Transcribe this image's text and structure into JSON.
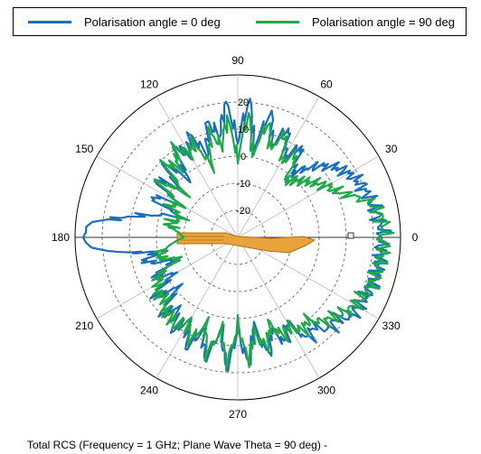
{
  "legend": {
    "items": [
      {
        "label": "Polarisation angle = 0 deg",
        "color": "#1a6fbd"
      },
      {
        "label": "Polarisation angle = 90 deg",
        "color": "#1fa84a"
      }
    ]
  },
  "caption": "Total RCS (Frequency = 1 GHz; Plane Wave Theta = 90 deg) -",
  "chart_data": {
    "type": "polar-line",
    "title": "",
    "angle_unit": "deg",
    "angle_ticks": [
      "0",
      "30",
      "60",
      "90",
      "120",
      "150",
      "180",
      "210",
      "240",
      "270",
      "300",
      "330"
    ],
    "radial_ticks": [
      "-20",
      "-10",
      "0",
      "10",
      "20"
    ],
    "rlim": [
      -30,
      30
    ],
    "grid": true,
    "legend_position": "top",
    "series": [
      {
        "name": "Polarisation angle = 0 deg",
        "color": "#1a6fbd",
        "angles": [
          0,
          5,
          10,
          15,
          20,
          25,
          30,
          35,
          40,
          45,
          50,
          55,
          60,
          65,
          70,
          75,
          80,
          85,
          90,
          95,
          100,
          105,
          110,
          115,
          120,
          125,
          130,
          135,
          140,
          145,
          150,
          155,
          160,
          165,
          170,
          172,
          174,
          176,
          178,
          180,
          182,
          184,
          186,
          188,
          190,
          195,
          200,
          205,
          210,
          215,
          220,
          225,
          230,
          235,
          240,
          245,
          250,
          255,
          260,
          265,
          270,
          275,
          280,
          285,
          290,
          295,
          300,
          305,
          310,
          315,
          320,
          325,
          330,
          335,
          340,
          345,
          350,
          355
        ],
        "values": [
          23,
          23,
          22,
          21,
          20,
          19,
          17,
          15,
          11,
          6,
          1,
          11,
          4,
          14,
          6,
          18,
          3,
          21,
          5,
          20,
          8,
          14,
          2,
          12,
          5,
          11,
          -3,
          9,
          -2,
          8,
          -5,
          6,
          -8,
          2,
          12,
          18,
          24,
          26,
          26,
          27,
          26,
          24,
          18,
          10,
          0,
          6,
          -6,
          4,
          -3,
          8,
          -2,
          10,
          4,
          12,
          5,
          15,
          6,
          17,
          3,
          19,
          4,
          17,
          2,
          15,
          6,
          13,
          6,
          16,
          13,
          18,
          17,
          21,
          21,
          22,
          22,
          23,
          23,
          23
        ]
      },
      {
        "name": "Polarisation angle = 90 deg",
        "color": "#1fa84a",
        "angles": [
          0,
          5,
          10,
          15,
          20,
          25,
          30,
          35,
          40,
          45,
          50,
          55,
          60,
          65,
          70,
          75,
          80,
          85,
          90,
          95,
          100,
          105,
          110,
          115,
          120,
          125,
          130,
          135,
          140,
          145,
          150,
          155,
          160,
          165,
          170,
          175,
          180,
          185,
          190,
          195,
          200,
          205,
          210,
          215,
          220,
          225,
          230,
          235,
          240,
          245,
          250,
          255,
          260,
          265,
          270,
          275,
          280,
          285,
          290,
          295,
          300,
          305,
          310,
          315,
          320,
          325,
          330,
          335,
          340,
          345,
          350,
          355
        ],
        "values": [
          24,
          24,
          23,
          20,
          15,
          10,
          8,
          5,
          2,
          0,
          -3,
          8,
          2,
          12,
          5,
          14,
          0,
          16,
          -2,
          14,
          4,
          10,
          -2,
          8,
          6,
          10,
          4,
          8,
          -5,
          6,
          -6,
          -2,
          -8,
          -6,
          -4,
          -8,
          -10,
          -6,
          -2,
          0,
          -8,
          2,
          4,
          6,
          5,
          8,
          8,
          10,
          6,
          12,
          4,
          14,
          5,
          16,
          2,
          15,
          6,
          12,
          4,
          10,
          8,
          12,
          10,
          14,
          16,
          18,
          20,
          21,
          22,
          23,
          23,
          24
        ]
      }
    ]
  }
}
